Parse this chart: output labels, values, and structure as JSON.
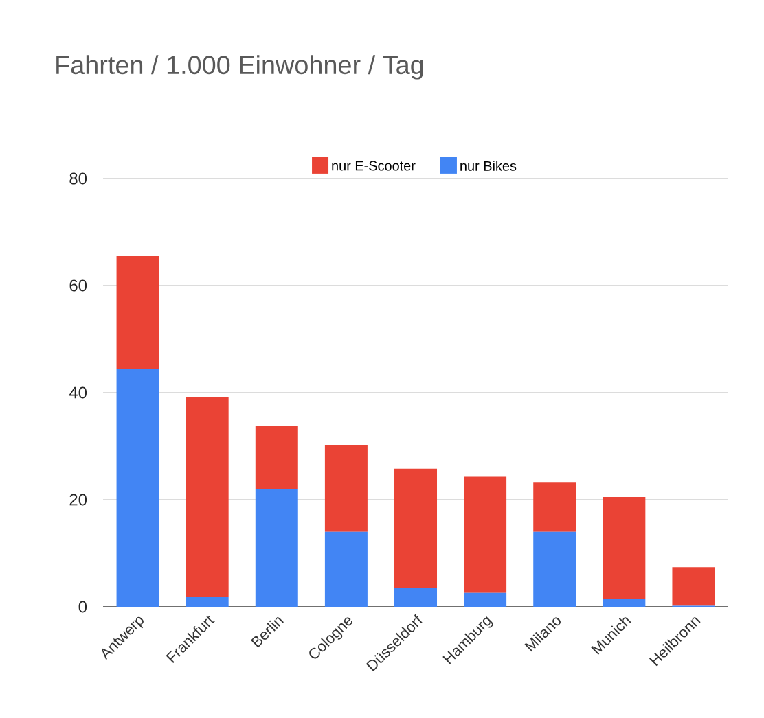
{
  "chart_data": {
    "type": "bar",
    "title": "Fahrten / 1.000 Einwohner / Tag",
    "categories": [
      "Antwerp",
      "Frankfurt",
      "Berlin",
      "Cologne",
      "Düsseldorf",
      "Hamburg",
      "Milano",
      "Munich",
      "Heilbronn"
    ],
    "series": [
      {
        "name": "nur Bikes",
        "color": "#4285f4",
        "values": [
          44.5,
          1.9,
          22.0,
          14.0,
          3.6,
          2.6,
          14.0,
          1.5,
          0.2
        ]
      },
      {
        "name": "nur E-Scooter",
        "color": "#ea4335",
        "values": [
          21.0,
          37.2,
          11.7,
          16.2,
          22.2,
          21.7,
          9.3,
          19.0,
          7.2
        ]
      }
    ],
    "stacked": true,
    "ylim": [
      0,
      80
    ],
    "yticks": [
      0,
      20,
      40,
      60,
      80
    ],
    "grid": "y",
    "legend": "top"
  }
}
